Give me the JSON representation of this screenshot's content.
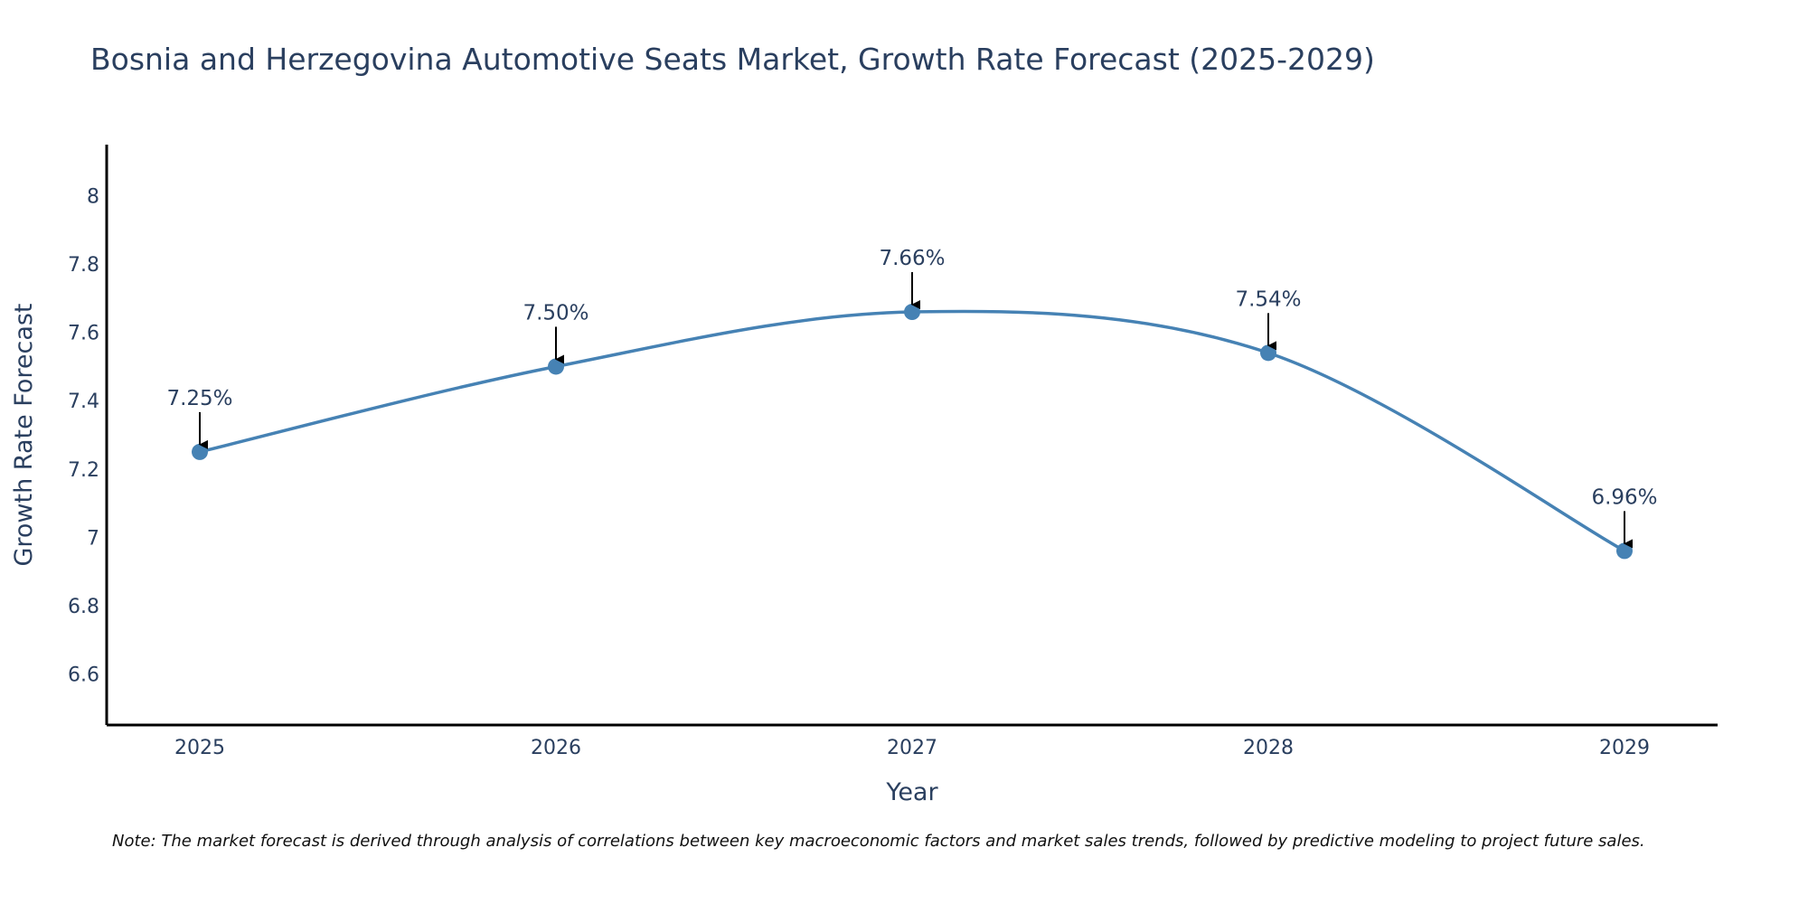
{
  "chart_data": {
    "type": "line",
    "title": "Bosnia and Herzegovina Automotive Seats Market, Growth Rate Forecast (2025-2029)",
    "xlabel": "Year",
    "ylabel": "Growth Rate Forecast",
    "categories": [
      "2025",
      "2026",
      "2027",
      "2028",
      "2029"
    ],
    "series": [
      {
        "name": "Growth Rate Forecast",
        "values": [
          7.25,
          7.5,
          7.66,
          7.54,
          6.96
        ],
        "labels": [
          "7.25%",
          "7.50%",
          "7.66%",
          "7.54%",
          "6.96%"
        ],
        "color": "#4682b4"
      }
    ],
    "ylim": [
      6.45,
      8.15
    ],
    "yticks": [
      6.6,
      6.8,
      7,
      7.2,
      7.4,
      7.6,
      7.8,
      8
    ],
    "ytick_labels": [
      "6.6",
      "6.8",
      "7",
      "7.2",
      "7.4",
      "7.6",
      "7.8",
      "8"
    ],
    "grid": false,
    "smoothing": "spline",
    "annotation_arrow_color": "#000000",
    "axis_color": "#000000",
    "text_color": "#2a3f5f"
  },
  "note": "Note: The market forecast is derived through analysis of correlations between key macroeconomic factors and market sales trends, followed by predictive modeling to project future sales."
}
